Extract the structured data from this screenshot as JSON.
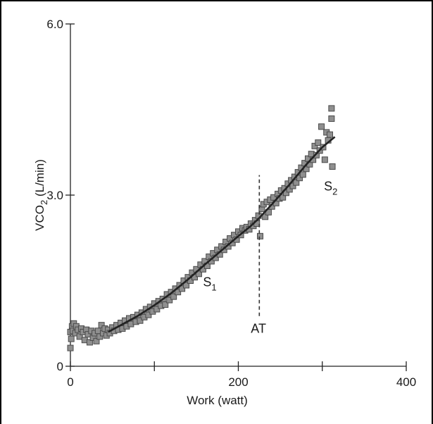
{
  "chart_data": {
    "type": "scatter",
    "title": "",
    "xlabel": "Work (watt)",
    "ylabel": {
      "main": "VCO",
      "sub": "2",
      "unit": " (L/min)"
    },
    "xlim": [
      0,
      400
    ],
    "ylim": [
      0,
      6.0
    ],
    "x_ticks": [
      {
        "value": 0,
        "label": "0"
      },
      {
        "value": 200,
        "label": "200"
      },
      {
        "value": 400,
        "label": "400"
      }
    ],
    "x_minor_ticks": [
      100,
      300
    ],
    "y_ticks": [
      {
        "value": 0,
        "label": "0"
      },
      {
        "value": 3.0,
        "label": "3.0"
      },
      {
        "value": 6.0,
        "label": "6.0"
      }
    ],
    "grid": false,
    "marker_color": "#8f8f8f",
    "marker_edge_color": "#4a4a4a",
    "line_color": "#222222",
    "points": [
      {
        "x": 0,
        "y": 0.32
      },
      {
        "x": 0,
        "y": 0.6
      },
      {
        "x": 1,
        "y": 0.48
      },
      {
        "x": 2,
        "y": 0.7
      },
      {
        "x": 3,
        "y": 0.62
      },
      {
        "x": 4,
        "y": 0.75
      },
      {
        "x": 6,
        "y": 0.58
      },
      {
        "x": 7,
        "y": 0.7
      },
      {
        "x": 9,
        "y": 0.64
      },
      {
        "x": 11,
        "y": 0.52
      },
      {
        "x": 13,
        "y": 0.66
      },
      {
        "x": 15,
        "y": 0.6
      },
      {
        "x": 17,
        "y": 0.46
      },
      {
        "x": 19,
        "y": 0.64
      },
      {
        "x": 21,
        "y": 0.56
      },
      {
        "x": 23,
        "y": 0.42
      },
      {
        "x": 25,
        "y": 0.62
      },
      {
        "x": 27,
        "y": 0.5
      },
      {
        "x": 29,
        "y": 0.58
      },
      {
        "x": 31,
        "y": 0.44
      },
      {
        "x": 33,
        "y": 0.62
      },
      {
        "x": 35,
        "y": 0.52
      },
      {
        "x": 37,
        "y": 0.72
      },
      {
        "x": 39,
        "y": 0.58
      },
      {
        "x": 41,
        "y": 0.66
      },
      {
        "x": 43,
        "y": 0.54
      },
      {
        "x": 45,
        "y": 0.64
      },
      {
        "x": 47,
        "y": 0.58
      },
      {
        "x": 50,
        "y": 0.68
      },
      {
        "x": 52,
        "y": 0.62
      },
      {
        "x": 55,
        "y": 0.72
      },
      {
        "x": 57,
        "y": 0.64
      },
      {
        "x": 60,
        "y": 0.76
      },
      {
        "x": 62,
        "y": 0.66
      },
      {
        "x": 65,
        "y": 0.8
      },
      {
        "x": 67,
        "y": 0.7
      },
      {
        "x": 70,
        "y": 0.84
      },
      {
        "x": 72,
        "y": 0.74
      },
      {
        "x": 75,
        "y": 0.86
      },
      {
        "x": 78,
        "y": 0.78
      },
      {
        "x": 80,
        "y": 0.9
      },
      {
        "x": 83,
        "y": 0.8
      },
      {
        "x": 85,
        "y": 0.94
      },
      {
        "x": 88,
        "y": 0.86
      },
      {
        "x": 90,
        "y": 1.0
      },
      {
        "x": 93,
        "y": 0.9
      },
      {
        "x": 95,
        "y": 1.04
      },
      {
        "x": 98,
        "y": 0.96
      },
      {
        "x": 100,
        "y": 1.1
      },
      {
        "x": 103,
        "y": 1.0
      },
      {
        "x": 105,
        "y": 1.14
      },
      {
        "x": 108,
        "y": 1.06
      },
      {
        "x": 110,
        "y": 1.18
      },
      {
        "x": 113,
        "y": 1.08
      },
      {
        "x": 115,
        "y": 1.26
      },
      {
        "x": 118,
        "y": 1.16
      },
      {
        "x": 120,
        "y": 1.3
      },
      {
        "x": 123,
        "y": 1.22
      },
      {
        "x": 125,
        "y": 1.36
      },
      {
        "x": 128,
        "y": 1.3
      },
      {
        "x": 130,
        "y": 1.42
      },
      {
        "x": 133,
        "y": 1.36
      },
      {
        "x": 135,
        "y": 1.5
      },
      {
        "x": 138,
        "y": 1.42
      },
      {
        "x": 140,
        "y": 1.56
      },
      {
        "x": 143,
        "y": 1.5
      },
      {
        "x": 145,
        "y": 1.64
      },
      {
        "x": 148,
        "y": 1.56
      },
      {
        "x": 150,
        "y": 1.7
      },
      {
        "x": 153,
        "y": 1.62
      },
      {
        "x": 155,
        "y": 1.78
      },
      {
        "x": 158,
        "y": 1.7
      },
      {
        "x": 160,
        "y": 1.84
      },
      {
        "x": 163,
        "y": 1.76
      },
      {
        "x": 165,
        "y": 1.92
      },
      {
        "x": 168,
        "y": 1.84
      },
      {
        "x": 170,
        "y": 1.98
      },
      {
        "x": 173,
        "y": 1.9
      },
      {
        "x": 175,
        "y": 2.04
      },
      {
        "x": 178,
        "y": 1.96
      },
      {
        "x": 180,
        "y": 2.1
      },
      {
        "x": 183,
        "y": 2.04
      },
      {
        "x": 185,
        "y": 2.18
      },
      {
        "x": 188,
        "y": 2.1
      },
      {
        "x": 190,
        "y": 2.24
      },
      {
        "x": 193,
        "y": 2.16
      },
      {
        "x": 195,
        "y": 2.3
      },
      {
        "x": 198,
        "y": 2.22
      },
      {
        "x": 200,
        "y": 2.36
      },
      {
        "x": 203,
        "y": 2.3
      },
      {
        "x": 205,
        "y": 2.42
      },
      {
        "x": 208,
        "y": 2.38
      },
      {
        "x": 210,
        "y": 2.44
      },
      {
        "x": 213,
        "y": 2.4
      },
      {
        "x": 215,
        "y": 2.5
      },
      {
        "x": 218,
        "y": 2.46
      },
      {
        "x": 220,
        "y": 2.56
      },
      {
        "x": 222,
        "y": 2.5
      },
      {
        "x": 224,
        "y": 2.64
      },
      {
        "x": 226,
        "y": 2.28
      },
      {
        "x": 228,
        "y": 2.76
      },
      {
        "x": 230,
        "y": 2.84
      },
      {
        "x": 232,
        "y": 2.62
      },
      {
        "x": 234,
        "y": 2.88
      },
      {
        "x": 236,
        "y": 2.7
      },
      {
        "x": 238,
        "y": 2.92
      },
      {
        "x": 240,
        "y": 2.8
      },
      {
        "x": 242,
        "y": 2.96
      },
      {
        "x": 245,
        "y": 2.86
      },
      {
        "x": 247,
        "y": 3.02
      },
      {
        "x": 249,
        "y": 2.94
      },
      {
        "x": 251,
        "y": 3.08
      },
      {
        "x": 253,
        "y": 2.96
      },
      {
        "x": 255,
        "y": 3.12
      },
      {
        "x": 257,
        "y": 3.04
      },
      {
        "x": 259,
        "y": 3.2
      },
      {
        "x": 261,
        "y": 3.1
      },
      {
        "x": 263,
        "y": 3.26
      },
      {
        "x": 265,
        "y": 3.16
      },
      {
        "x": 267,
        "y": 3.32
      },
      {
        "x": 269,
        "y": 3.22
      },
      {
        "x": 271,
        "y": 3.4
      },
      {
        "x": 273,
        "y": 3.3
      },
      {
        "x": 275,
        "y": 3.48
      },
      {
        "x": 277,
        "y": 3.36
      },
      {
        "x": 279,
        "y": 3.56
      },
      {
        "x": 281,
        "y": 3.46
      },
      {
        "x": 283,
        "y": 3.64
      },
      {
        "x": 285,
        "y": 3.54
      },
      {
        "x": 287,
        "y": 3.72
      },
      {
        "x": 289,
        "y": 3.62
      },
      {
        "x": 291,
        "y": 3.86
      },
      {
        "x": 293,
        "y": 3.7
      },
      {
        "x": 295,
        "y": 3.92
      },
      {
        "x": 297,
        "y": 3.78
      },
      {
        "x": 299,
        "y": 4.2
      },
      {
        "x": 301,
        "y": 3.84
      },
      {
        "x": 303,
        "y": 3.62
      },
      {
        "x": 305,
        "y": 4.1
      },
      {
        "x": 307,
        "y": 3.96
      },
      {
        "x": 309,
        "y": 4.06
      },
      {
        "x": 311,
        "y": 4.52
      },
      {
        "x": 311,
        "y": 4.34
      },
      {
        "x": 312,
        "y": 3.5
      }
    ],
    "fit_curve": [
      {
        "x": 45,
        "y": 0.6
      },
      {
        "x": 60,
        "y": 0.72
      },
      {
        "x": 80,
        "y": 0.88
      },
      {
        "x": 100,
        "y": 1.07
      },
      {
        "x": 120,
        "y": 1.28
      },
      {
        "x": 140,
        "y": 1.52
      },
      {
        "x": 160,
        "y": 1.78
      },
      {
        "x": 180,
        "y": 2.03
      },
      {
        "x": 200,
        "y": 2.28
      },
      {
        "x": 215,
        "y": 2.46
      },
      {
        "x": 225,
        "y": 2.6
      },
      {
        "x": 240,
        "y": 2.84
      },
      {
        "x": 260,
        "y": 3.17
      },
      {
        "x": 280,
        "y": 3.52
      },
      {
        "x": 300,
        "y": 3.84
      },
      {
        "x": 315,
        "y": 4.02
      }
    ],
    "annotations": [
      {
        "key": "s1",
        "text": "S",
        "sub": "1",
        "x": 158,
        "y": 1.4
      },
      {
        "key": "s2",
        "text": "S",
        "sub": "2",
        "x": 302,
        "y": 3.08
      },
      {
        "key": "at",
        "text": "AT",
        "x": 224,
        "y": 0.88
      }
    ],
    "threshold_line": {
      "label": "AT",
      "x": 225,
      "y_from": 0.88,
      "y_to": 3.35
    }
  }
}
